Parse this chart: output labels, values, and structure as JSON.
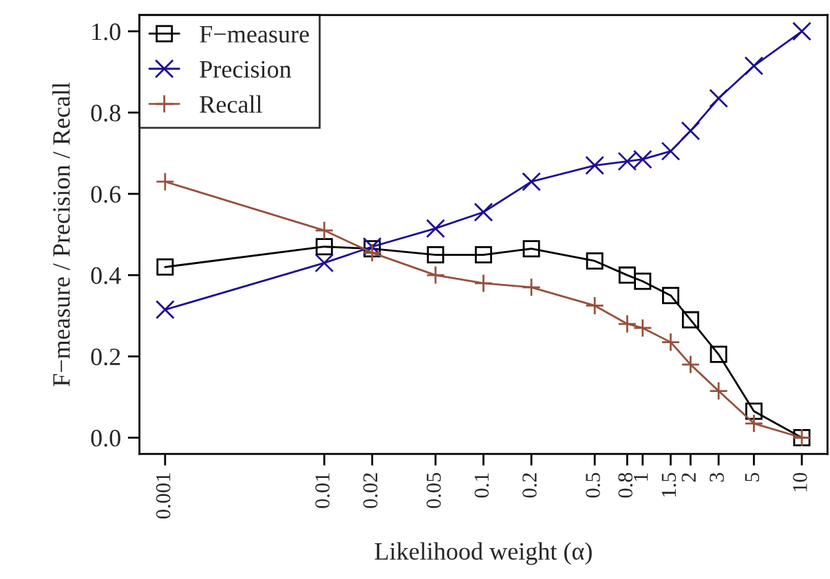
{
  "chart_data": {
    "type": "line",
    "xlabel": "Likelihood weight (α)",
    "ylabel": "F−measure / Precision / Recall",
    "x": [
      0.001,
      0.01,
      0.02,
      0.05,
      0.1,
      0.2,
      0.5,
      0.8,
      1,
      1.5,
      2,
      3,
      5,
      10
    ],
    "series": [
      {
        "name": "F−measure",
        "color": "#000000",
        "marker": "square",
        "values": [
          0.42,
          0.47,
          0.465,
          0.45,
          0.45,
          0.465,
          0.435,
          0.4,
          0.385,
          0.35,
          0.29,
          0.205,
          0.065,
          0.0
        ]
      },
      {
        "name": "Precision",
        "color": "#1c0e94",
        "marker": "cross",
        "values": [
          0.315,
          0.43,
          0.47,
          0.515,
          0.555,
          0.63,
          0.67,
          0.68,
          0.685,
          0.705,
          0.755,
          0.835,
          0.915,
          1.0
        ]
      },
      {
        "name": "Recall",
        "color": "#96503c",
        "marker": "plus",
        "values": [
          0.63,
          0.51,
          0.455,
          0.4,
          0.38,
          0.37,
          0.325,
          0.28,
          0.27,
          0.235,
          0.18,
          0.115,
          0.035,
          0.0
        ]
      }
    ],
    "log": "x",
    "xlim": [
      0.00069,
      14.5
    ],
    "ylim": [
      -0.04,
      1.04
    ],
    "xticks": [
      0.001,
      0.01,
      0.02,
      0.05,
      0.1,
      0.2,
      0.5,
      0.8,
      1,
      1.5,
      2,
      3,
      5,
      10
    ],
    "yticks": [
      {
        "value": 0,
        "label": "0.0"
      },
      {
        "value": 0.2,
        "label": "0.2"
      },
      {
        "value": 0.4,
        "label": "0.4"
      },
      {
        "value": 0.6,
        "label": "0.6"
      },
      {
        "value": 0.8,
        "label": "0.8"
      },
      {
        "value": 1,
        "label": "1.0"
      }
    ],
    "grid": false,
    "legend": "top left",
    "line_style": "solid"
  }
}
